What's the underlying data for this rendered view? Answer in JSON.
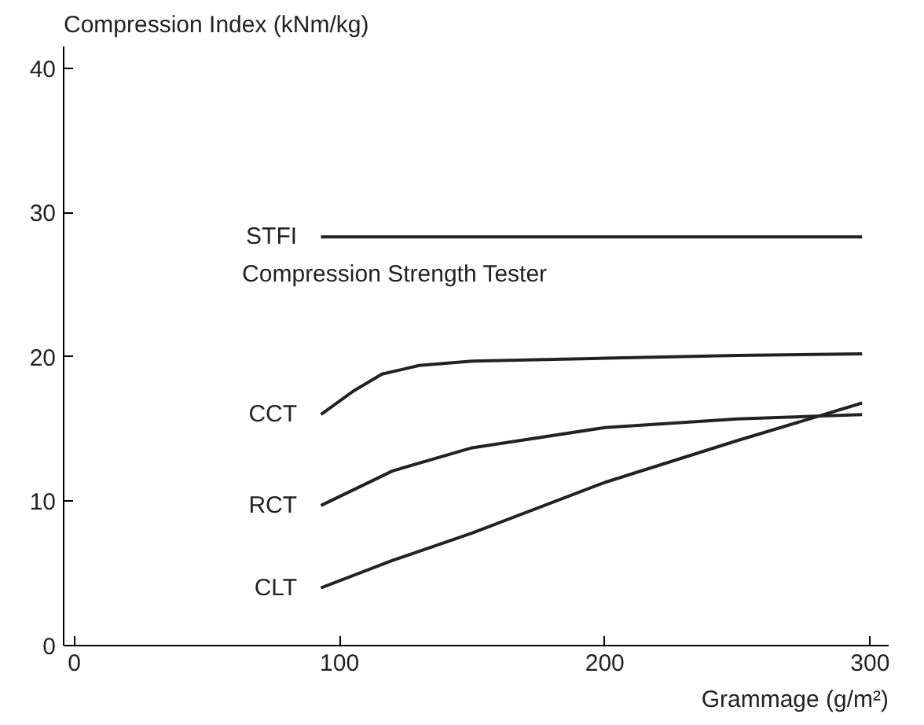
{
  "chart_data": {
    "type": "line",
    "xlabel": "Grammage (g/m²)",
    "ylabel": "Compression Index (kNm/kg)",
    "xlim": [
      -4,
      307
    ],
    "ylim": [
      0,
      41.5
    ],
    "xticks": [
      0,
      100,
      200,
      300
    ],
    "yticks": [
      0,
      10,
      20,
      30,
      40
    ],
    "grid": false,
    "marker": "none",
    "line_style": "solid",
    "series": [
      {
        "name": "STFI",
        "color": "#222222",
        "x": [
          93,
          297
        ],
        "values": [
          28.3,
          28.3
        ]
      },
      {
        "name": "CCT",
        "color": "#222222",
        "x": [
          93,
          105,
          116,
          130,
          150,
          200,
          250,
          297
        ],
        "values": [
          16.0,
          17.6,
          18.8,
          19.4,
          19.7,
          19.9,
          20.1,
          20.2
        ]
      },
      {
        "name": "RCT",
        "color": "#222222",
        "x": [
          93,
          120,
          150,
          200,
          250,
          297
        ],
        "values": [
          9.7,
          12.1,
          13.7,
          15.1,
          15.7,
          16.0
        ]
      },
      {
        "name": "CLT",
        "color": "#222222",
        "x": [
          93,
          120,
          150,
          200,
          250,
          297
        ],
        "values": [
          4.0,
          5.9,
          7.8,
          11.3,
          14.2,
          16.8
        ]
      }
    ],
    "annotations": [
      "Compression Strength Tester"
    ]
  }
}
